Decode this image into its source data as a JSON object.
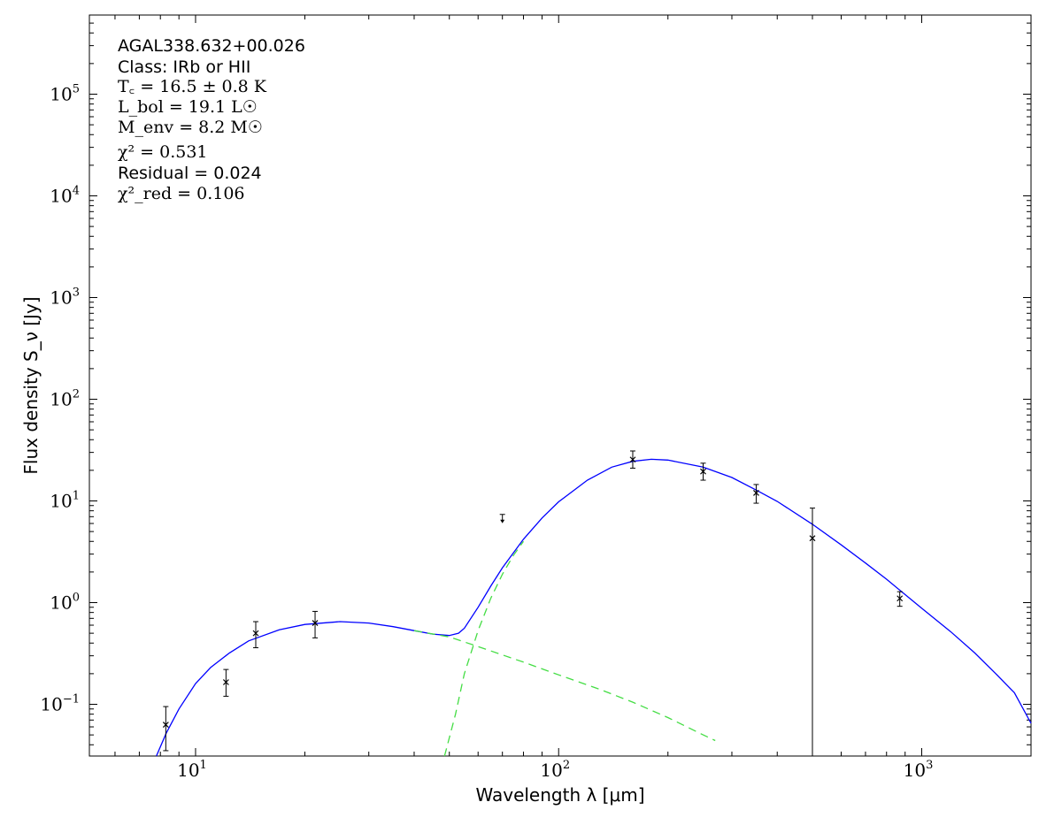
{
  "chart_data": {
    "type": "line",
    "xlabel": "Wavelength λ [μm]",
    "ylabel": "Flux density S_ν [Jy]",
    "xscale": "log",
    "yscale": "log",
    "xlim": [
      5.1,
      2000
    ],
    "ylim": [
      0.031,
      600000
    ],
    "x_ticks": [
      {
        "base": "10",
        "exp": "1",
        "value": 10
      },
      {
        "base": "10",
        "exp": "2",
        "value": 100
      },
      {
        "base": "10",
        "exp": "3",
        "value": 1000
      }
    ],
    "y_ticks": [
      {
        "base": "10",
        "exp": "−1",
        "value": 0.1
      },
      {
        "base": "10",
        "exp": "0",
        "value": 1
      },
      {
        "base": "10",
        "exp": "1",
        "value": 10
      },
      {
        "base": "10",
        "exp": "2",
        "value": 100
      },
      {
        "base": "10",
        "exp": "3",
        "value": 1000
      },
      {
        "base": "10",
        "exp": "4",
        "value": 10000
      },
      {
        "base": "10",
        "exp": "5",
        "value": 100000
      }
    ],
    "grid": false,
    "annotations": {
      "source": "AGAL338.632+00.026",
      "class_text": "Class: IRb or HII",
      "tc": "T꜀ = 16.5 ± 0.8 K",
      "lbol": "L_bol = 19.1 L☉",
      "menv": "M_env = 8.2 M☉",
      "chi2": "χ² = 0.531",
      "residual": "Residual = 0.024",
      "chi2_red": "χ²_red = 0.106"
    },
    "series": [
      {
        "role": "data points",
        "color": "#000000",
        "points": [
          {
            "x": 8.28,
            "y": 0.063,
            "err_low": 0.035,
            "err_high": 0.095
          },
          {
            "x": 12.13,
            "y": 0.165,
            "err_low": 0.12,
            "err_high": 0.22
          },
          {
            "x": 14.65,
            "y": 0.5,
            "err_low": 0.36,
            "err_high": 0.65
          },
          {
            "x": 21.34,
            "y": 0.63,
            "err_low": 0.45,
            "err_high": 0.82
          },
          {
            "x": 160,
            "y": 25.5,
            "err_low": 21,
            "err_high": 31
          },
          {
            "x": 250,
            "y": 19.5,
            "err_low": 16,
            "err_high": 23.5
          },
          {
            "x": 350,
            "y": 12,
            "err_low": 9.5,
            "err_high": 14.5
          },
          {
            "x": 500,
            "y": 4.3,
            "err_low": 0.001,
            "err_high": 8.5
          },
          {
            "x": 870,
            "y": 1.1,
            "err_low": 0.92,
            "err_high": 1.28
          }
        ]
      },
      {
        "role": "upper limit",
        "color": "#000000",
        "points": [
          {
            "x": 70,
            "y": 6.8
          }
        ]
      },
      {
        "role": "total model",
        "color": "#0000ff",
        "points": [
          [
            7.8,
            0.031
          ],
          [
            8.3,
            0.052
          ],
          [
            9.0,
            0.09
          ],
          [
            10,
            0.16
          ],
          [
            11,
            0.23
          ],
          [
            12.4,
            0.32
          ],
          [
            14,
            0.42
          ],
          [
            17,
            0.54
          ],
          [
            20,
            0.61
          ],
          [
            25,
            0.65
          ],
          [
            30,
            0.63
          ],
          [
            35,
            0.58
          ],
          [
            40,
            0.53
          ],
          [
            45,
            0.49
          ],
          [
            50,
            0.475
          ],
          [
            53,
            0.5
          ],
          [
            55,
            0.56
          ],
          [
            60,
            0.9
          ],
          [
            65,
            1.45
          ],
          [
            70,
            2.2
          ],
          [
            80,
            4.2
          ],
          [
            90,
            6.8
          ],
          [
            100,
            9.8
          ],
          [
            120,
            16
          ],
          [
            140,
            21.5
          ],
          [
            160,
            24.5
          ],
          [
            180,
            25.7
          ],
          [
            200,
            25.2
          ],
          [
            250,
            21.5
          ],
          [
            300,
            17
          ],
          [
            350,
            12.8
          ],
          [
            400,
            9.9
          ],
          [
            500,
            5.9
          ],
          [
            600,
            3.7
          ],
          [
            700,
            2.45
          ],
          [
            800,
            1.7
          ],
          [
            900,
            1.2
          ],
          [
            1000,
            0.88
          ],
          [
            1200,
            0.52
          ],
          [
            1400,
            0.32
          ],
          [
            1600,
            0.2
          ],
          [
            1800,
            0.13
          ],
          [
            2000,
            0.065
          ]
        ]
      },
      {
        "role": "warm component",
        "color": "#44dd44",
        "points": [
          [
            40,
            0.53
          ],
          [
            50,
            0.46
          ],
          [
            60,
            0.37
          ],
          [
            80,
            0.26
          ],
          [
            100,
            0.195
          ],
          [
            130,
            0.14
          ],
          [
            160,
            0.105
          ],
          [
            200,
            0.074
          ],
          [
            250,
            0.05
          ],
          [
            270,
            0.044
          ]
        ]
      },
      {
        "role": "cold component",
        "color": "#44dd44",
        "points": [
          [
            48.5,
            0.031
          ],
          [
            52,
            0.08
          ],
          [
            55,
            0.2
          ],
          [
            60,
            0.53
          ],
          [
            65,
            1.1
          ],
          [
            70,
            1.9
          ],
          [
            75,
            2.9
          ],
          [
            80,
            4.0
          ]
        ]
      }
    ]
  }
}
